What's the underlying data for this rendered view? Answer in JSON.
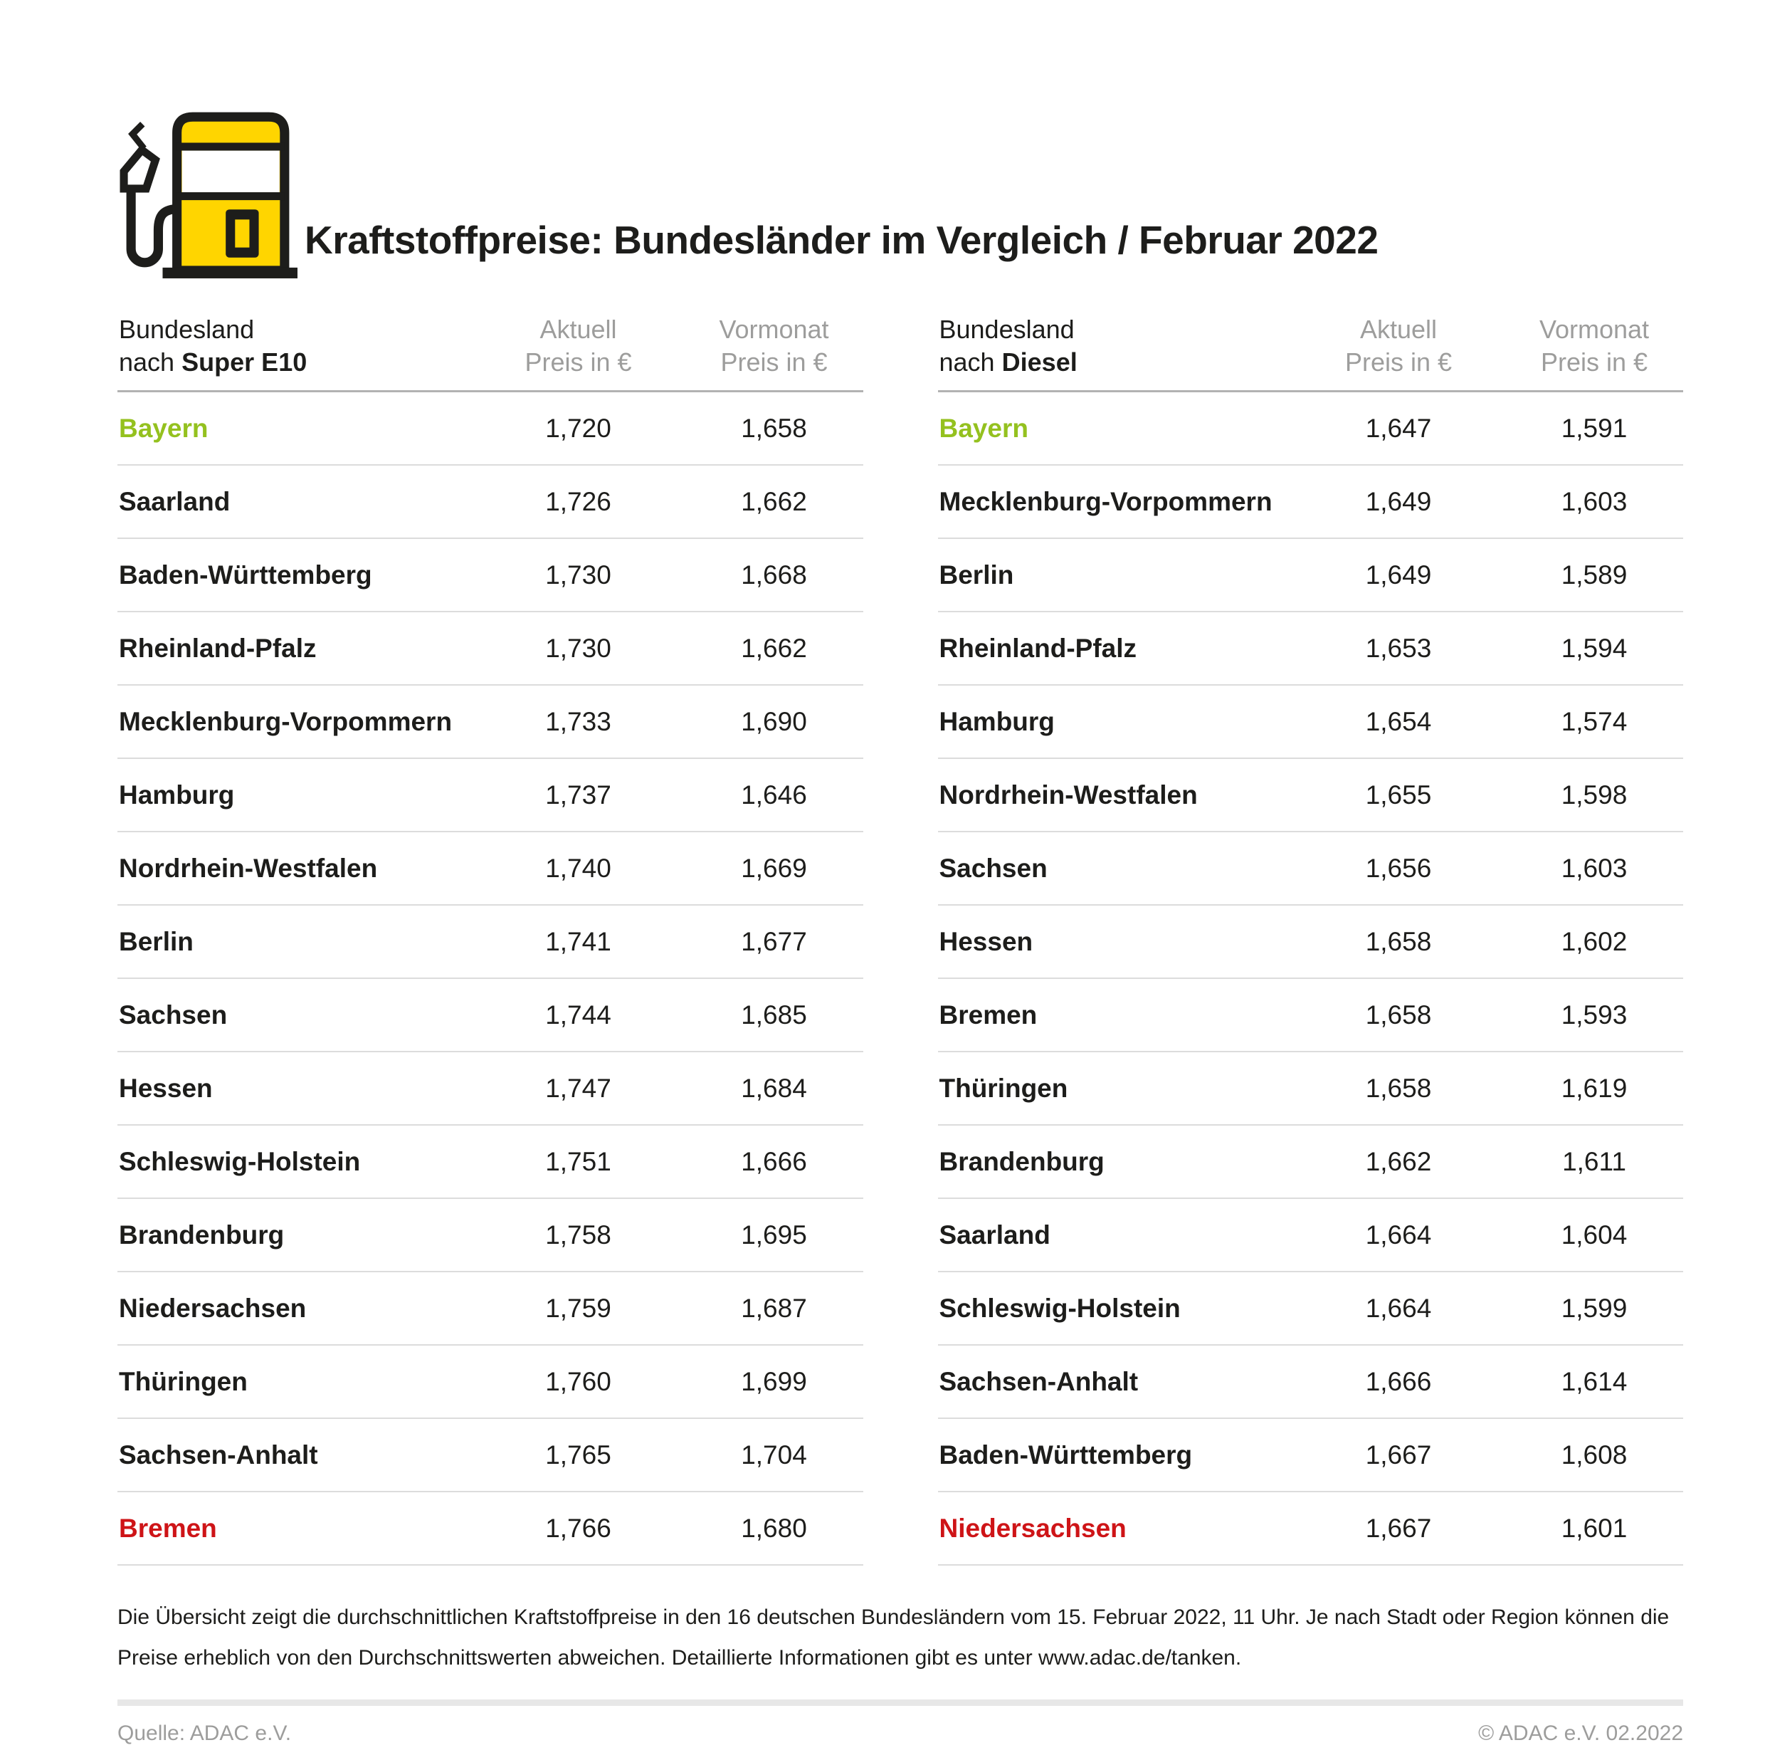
{
  "title": "Kraftstoffpreise: Bundesländer im Vergleich / Februar 2022",
  "colors": {
    "accent_yellow": "#FFD500",
    "outline_black": "#1D1D1B",
    "cheapest_green": "#94C11F",
    "most_expensive_red": "#CE1417",
    "muted_gray": "#9D9D9C"
  },
  "chart_data": [
    {
      "type": "table",
      "fuel": "Super E10",
      "header": {
        "col1_line1": "Bundesland",
        "col1_line2_prefix": "nach",
        "col1_line2_bold": "Super E10",
        "col2_line1": "Aktuell",
        "col2_line2": "Preis in €",
        "col3_line1": "Vormonat",
        "col3_line2": "Preis in €"
      },
      "rows": [
        {
          "land": "Bayern",
          "aktuell": 1.72,
          "vormonat": 1.658,
          "color": "best"
        },
        {
          "land": "Saarland",
          "aktuell": 1.726,
          "vormonat": 1.662
        },
        {
          "land": "Baden-Württemberg",
          "aktuell": 1.73,
          "vormonat": 1.668
        },
        {
          "land": "Rheinland-Pfalz",
          "aktuell": 1.73,
          "vormonat": 1.662
        },
        {
          "land": "Mecklenburg-Vorpommern",
          "aktuell": 1.733,
          "vormonat": 1.69
        },
        {
          "land": "Hamburg",
          "aktuell": 1.737,
          "vormonat": 1.646
        },
        {
          "land": "Nordrhein-Westfalen",
          "aktuell": 1.74,
          "vormonat": 1.669
        },
        {
          "land": "Berlin",
          "aktuell": 1.741,
          "vormonat": 1.677
        },
        {
          "land": "Sachsen",
          "aktuell": 1.744,
          "vormonat": 1.685
        },
        {
          "land": "Hessen",
          "aktuell": 1.747,
          "vormonat": 1.684
        },
        {
          "land": "Schleswig-Holstein",
          "aktuell": 1.751,
          "vormonat": 1.666
        },
        {
          "land": "Brandenburg",
          "aktuell": 1.758,
          "vormonat": 1.695
        },
        {
          "land": "Niedersachsen",
          "aktuell": 1.759,
          "vormonat": 1.687
        },
        {
          "land": "Thüringen",
          "aktuell": 1.76,
          "vormonat": 1.699
        },
        {
          "land": "Sachsen-Anhalt",
          "aktuell": 1.765,
          "vormonat": 1.704
        },
        {
          "land": "Bremen",
          "aktuell": 1.766,
          "vormonat": 1.68,
          "color": "worst"
        }
      ]
    },
    {
      "type": "table",
      "fuel": "Diesel",
      "header": {
        "col1_line1": "Bundesland",
        "col1_line2_prefix": "nach",
        "col1_line2_bold": "Diesel",
        "col2_line1": "Aktuell",
        "col2_line2": "Preis in €",
        "col3_line1": "Vormonat",
        "col3_line2": "Preis in €"
      },
      "rows": [
        {
          "land": "Bayern",
          "aktuell": 1.647,
          "vormonat": 1.591,
          "color": "best"
        },
        {
          "land": "Mecklenburg-Vorpommern",
          "aktuell": 1.649,
          "vormonat": 1.603
        },
        {
          "land": "Berlin",
          "aktuell": 1.649,
          "vormonat": 1.589
        },
        {
          "land": "Rheinland-Pfalz",
          "aktuell": 1.653,
          "vormonat": 1.594
        },
        {
          "land": "Hamburg",
          "aktuell": 1.654,
          "vormonat": 1.574
        },
        {
          "land": "Nordrhein-Westfalen",
          "aktuell": 1.655,
          "vormonat": 1.598
        },
        {
          "land": "Sachsen",
          "aktuell": 1.656,
          "vormonat": 1.603
        },
        {
          "land": "Hessen",
          "aktuell": 1.658,
          "vormonat": 1.602
        },
        {
          "land": "Bremen",
          "aktuell": 1.658,
          "vormonat": 1.593
        },
        {
          "land": "Thüringen",
          "aktuell": 1.658,
          "vormonat": 1.619
        },
        {
          "land": "Brandenburg",
          "aktuell": 1.662,
          "vormonat": 1.611
        },
        {
          "land": "Saarland",
          "aktuell": 1.664,
          "vormonat": 1.604
        },
        {
          "land": "Schleswig-Holstein",
          "aktuell": 1.664,
          "vormonat": 1.599
        },
        {
          "land": "Sachsen-Anhalt",
          "aktuell": 1.666,
          "vormonat": 1.614
        },
        {
          "land": "Baden-Württemberg",
          "aktuell": 1.667,
          "vormonat": 1.608
        },
        {
          "land": "Niedersachsen",
          "aktuell": 1.667,
          "vormonat": 1.601,
          "color": "worst"
        }
      ]
    }
  ],
  "footnote": {
    "line1": "Die Übersicht zeigt die durchschnittlichen Kraftstoffpreise in den 16 deutschen Bundesländern vom 15. Februar 2022, 11 Uhr. Je nach Stadt oder Region können die",
    "line2": "Preise erheblich von den Durchschnittswerten abweichen. Detaillierte Informationen gibt es unter www.adac.de/tanken."
  },
  "footer": {
    "source": "Quelle: ADAC e.V.",
    "copyright": "© ADAC e.V. 02.2022"
  }
}
